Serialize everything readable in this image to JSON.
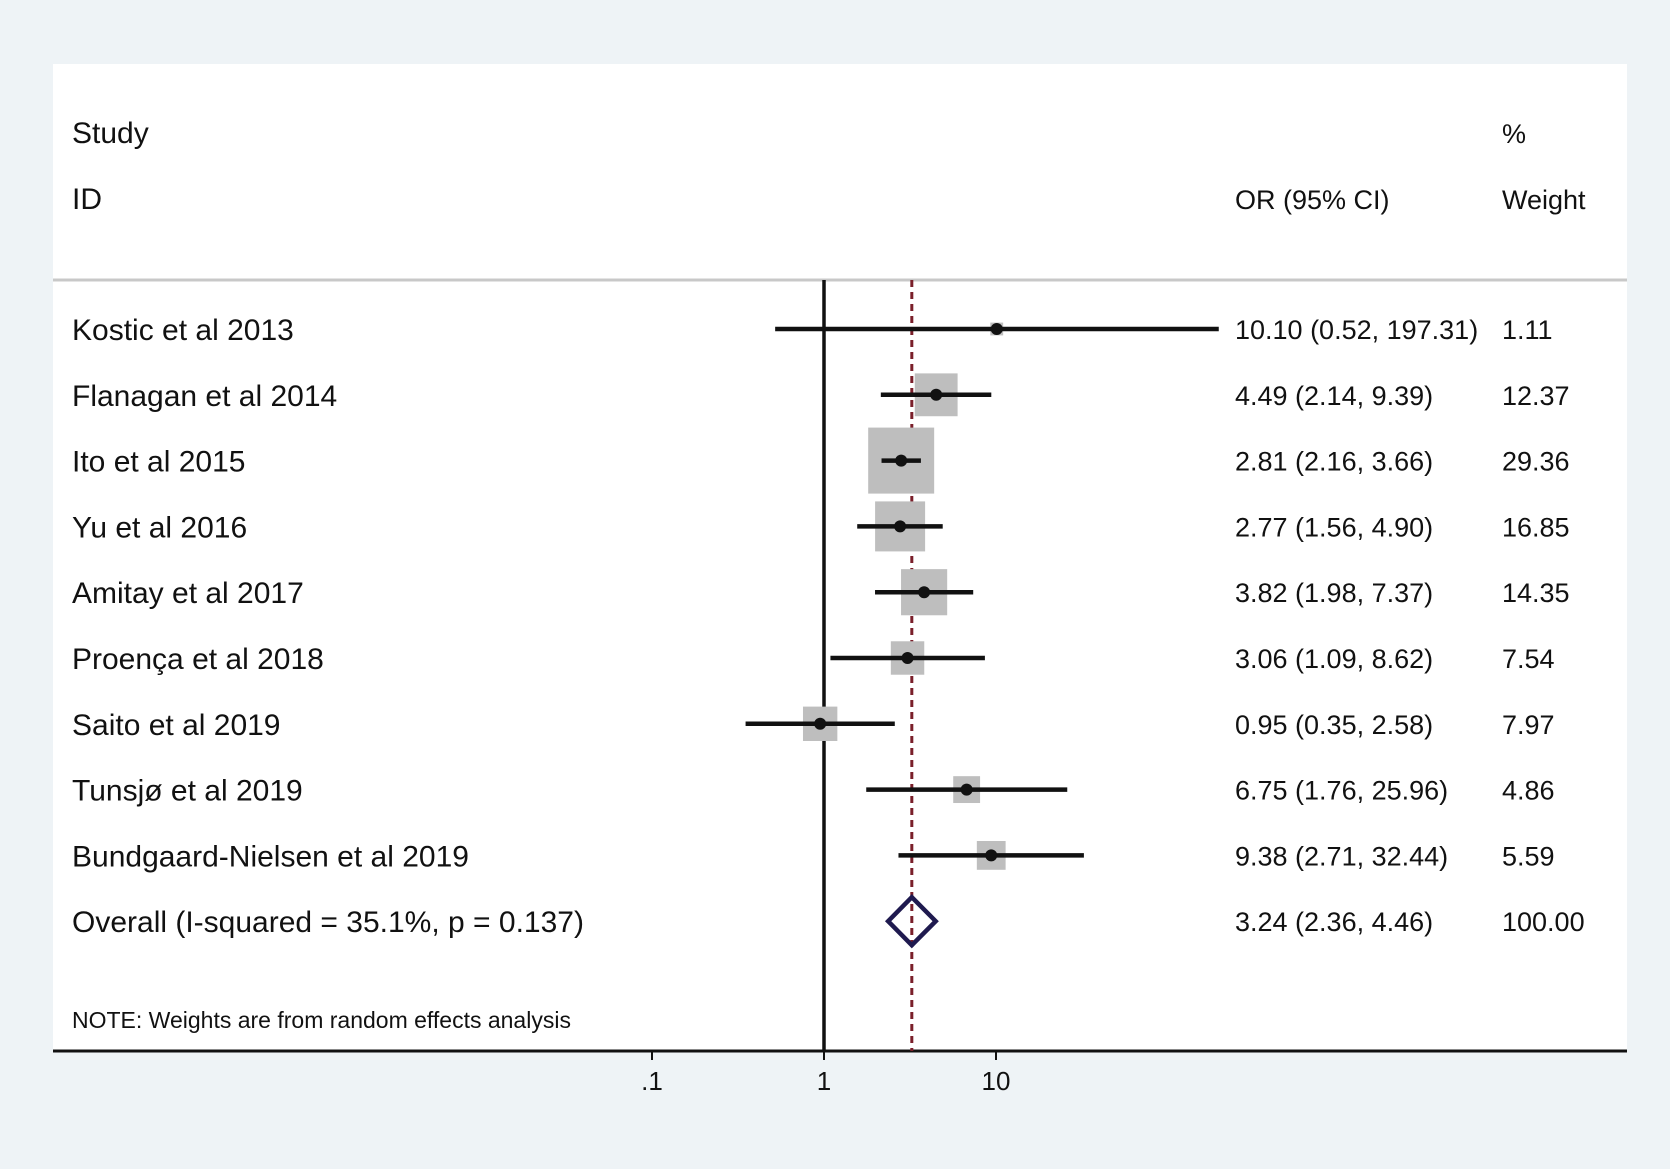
{
  "chart_data": {
    "type": "forest",
    "header": {
      "study": "Study",
      "id": "ID",
      "or_ci": "OR (95% CI)",
      "pct": "%",
      "weight": "Weight"
    },
    "x_scale": "log",
    "x_ticks": [
      0.1,
      1,
      10
    ],
    "x_tick_labels": [
      ".1",
      "1",
      "10"
    ],
    "null_value": 1,
    "studies": [
      {
        "label": "Kostic et al 2013",
        "or": 10.1,
        "lo": 0.52,
        "hi": 197.31,
        "ci_text": "10.10 (0.52, 197.31)",
        "weight": "1.11"
      },
      {
        "label": "Flanagan et al 2014",
        "or": 4.49,
        "lo": 2.14,
        "hi": 9.39,
        "ci_text": "4.49 (2.14, 9.39)",
        "weight": "12.37"
      },
      {
        "label": "Ito et al 2015",
        "or": 2.81,
        "lo": 2.16,
        "hi": 3.66,
        "ci_text": "2.81 (2.16, 3.66)",
        "weight": "29.36"
      },
      {
        "label": "Yu et al 2016",
        "or": 2.77,
        "lo": 1.56,
        "hi": 4.9,
        "ci_text": "2.77 (1.56, 4.90)",
        "weight": "16.85"
      },
      {
        "label": "Amitay et al 2017",
        "or": 3.82,
        "lo": 1.98,
        "hi": 7.37,
        "ci_text": "3.82 (1.98, 7.37)",
        "weight": "14.35"
      },
      {
        "label": "Proença et al 2018",
        "or": 3.06,
        "lo": 1.09,
        "hi": 8.62,
        "ci_text": "3.06 (1.09, 8.62)",
        "weight": "7.54"
      },
      {
        "label": "Saito et al 2019",
        "or": 0.95,
        "lo": 0.35,
        "hi": 2.58,
        "ci_text": "0.95 (0.35, 2.58)",
        "weight": "7.97"
      },
      {
        "label": "Tunsjø et al 2019",
        "or": 6.75,
        "lo": 1.76,
        "hi": 25.96,
        "ci_text": "6.75 (1.76, 25.96)",
        "weight": "4.86"
      },
      {
        "label": "Bundgaard-Nielsen et al 2019",
        "or": 9.38,
        "lo": 2.71,
        "hi": 32.44,
        "ci_text": "9.38 (2.71, 32.44)",
        "weight": "5.59"
      }
    ],
    "overall": {
      "label": "Overall  (I-squared = 35.1%, p = 0.137)",
      "or": 3.24,
      "lo": 2.36,
      "hi": 4.46,
      "ci_text": "3.24 (2.36, 4.46)",
      "weight": "100.00"
    },
    "note": "NOTE: Weights are from random effects analysis",
    "colors": {
      "box": "#bebebe",
      "ci": "#111111",
      "diamond": "#1f1a4f",
      "overall_line": "#7a1f2a",
      "background": "#eef3f6"
    }
  }
}
